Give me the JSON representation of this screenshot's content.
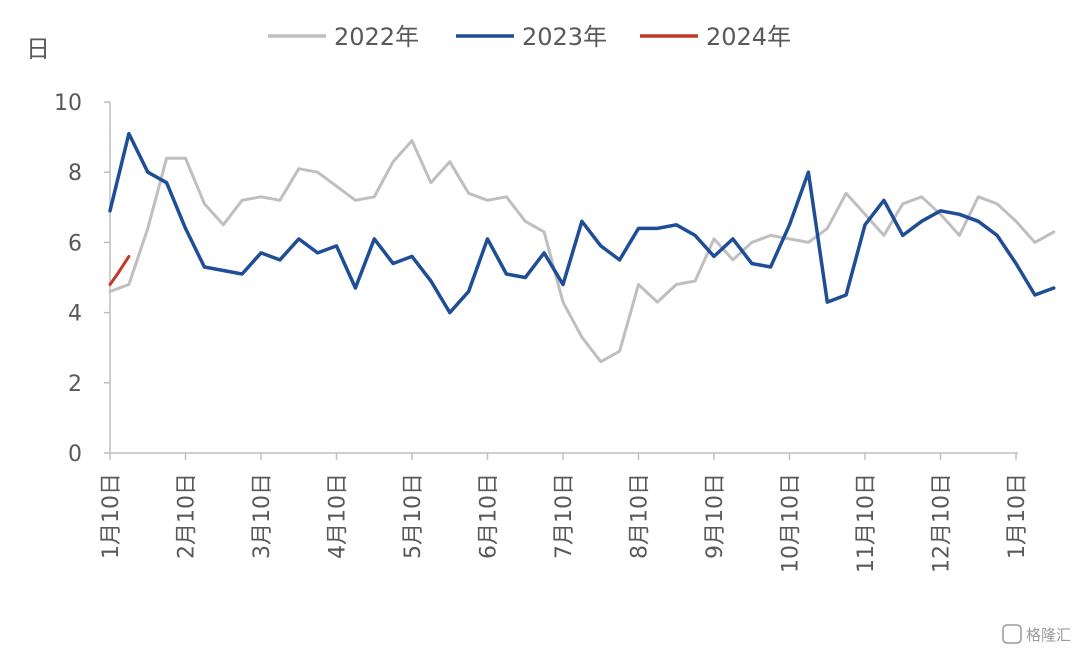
{
  "chart_data": {
    "type": "line",
    "ylabel": "日",
    "ylim": [
      0,
      10
    ],
    "yticks": [
      "0",
      "2",
      "4",
      "6",
      "8",
      "10"
    ],
    "categories": [
      "1月10日",
      "2月10日",
      "3月10日",
      "4月10日",
      "5月10日",
      "6月10日",
      "7月10日",
      "8月10日",
      "9月10日",
      "10月10日",
      "11月10日",
      "12月10日",
      "1月10日"
    ],
    "grid": false,
    "legend_position": "top",
    "colors": {
      "2022年": "#bfbfbf",
      "2023年": "#1f4e96",
      "2024年": "#c0392b",
      "axis": "#bfbfbf",
      "text": "#595959"
    },
    "series": [
      {
        "name": "2022年",
        "x": [
          0,
          0.25,
          0.5,
          0.75,
          1.0,
          1.25,
          1.5,
          1.75,
          2.0,
          2.25,
          2.5,
          2.75,
          3.0,
          3.25,
          3.5,
          3.75,
          4.0,
          4.25,
          4.5,
          4.75,
          5.0,
          5.25,
          5.5,
          5.75,
          6.0,
          6.25,
          6.5,
          6.75,
          7.0,
          7.25,
          7.5,
          7.75,
          8.0,
          8.25,
          8.5,
          8.75,
          9.0,
          9.25,
          9.5,
          9.75,
          10.0,
          10.25,
          10.5,
          10.75,
          11.0,
          11.25,
          11.5
        ],
        "values": [
          4.6,
          4.8,
          6.4,
          8.4,
          8.4,
          7.1,
          6.5,
          7.2,
          7.3,
          7.2,
          8.1,
          8.0,
          7.6,
          7.2,
          7.3,
          8.3,
          8.9,
          7.7,
          8.3,
          7.4,
          7.2,
          7.3,
          6.6,
          6.3,
          4.3,
          3.3,
          2.6,
          2.9,
          4.8,
          4.3,
          4.8,
          4.9,
          6.1,
          5.5,
          6.0,
          6.2,
          6.1,
          6.0,
          6.4,
          7.4,
          6.8,
          6.2,
          7.1,
          7.3,
          6.8,
          6.2,
          7.3
        ]
      },
      {
        "name": "2023年",
        "x": [
          0,
          0.25,
          0.5,
          0.75,
          1.0,
          1.25,
          1.5,
          1.75,
          2.0,
          2.25,
          2.5,
          2.75,
          3.0,
          3.25,
          3.5,
          3.75,
          4.0,
          4.25,
          4.5,
          4.75,
          5.0,
          5.25,
          5.5,
          5.75,
          6.0,
          6.25,
          6.5,
          6.75,
          7.0,
          7.25,
          7.5,
          7.75,
          8.0,
          8.25,
          8.5,
          8.75,
          9.0,
          9.25,
          9.5,
          9.75,
          10.0,
          10.25,
          10.5,
          10.75,
          11.0,
          11.25,
          11.5
        ],
        "values": [
          6.9,
          9.1,
          8.0,
          7.7,
          6.4,
          5.3,
          5.2,
          5.1,
          5.7,
          5.5,
          6.1,
          5.7,
          5.9,
          4.7,
          6.1,
          5.4,
          5.6,
          4.9,
          4.0,
          4.6,
          6.1,
          5.1,
          5.0,
          5.7,
          4.8,
          6.6,
          5.9,
          5.5,
          6.4,
          6.4,
          6.5,
          6.2,
          5.6,
          6.1,
          5.4,
          5.3,
          6.5,
          8.0,
          4.3,
          4.5,
          6.5,
          7.2,
          6.2,
          6.6,
          6.9,
          6.8,
          6.6
        ]
      },
      {
        "name": "2024年",
        "x": [
          0,
          0.1,
          0.25
        ],
        "values": [
          4.8,
          5.1,
          5.6
        ]
      }
    ]
  },
  "series_2023_tail": {
    "x": [
      11.5,
      11.75,
      12.0,
      12.25,
      12.5
    ],
    "values": [
      6.6,
      6.2,
      5.4,
      4.5,
      4.7
    ]
  },
  "series_2022_tail": {
    "x": [
      11.5,
      11.75,
      12.0,
      12.25,
      12.5
    ],
    "values": [
      7.3,
      7.1,
      6.6,
      6.0,
      6.3
    ]
  },
  "watermark": "格隆汇"
}
